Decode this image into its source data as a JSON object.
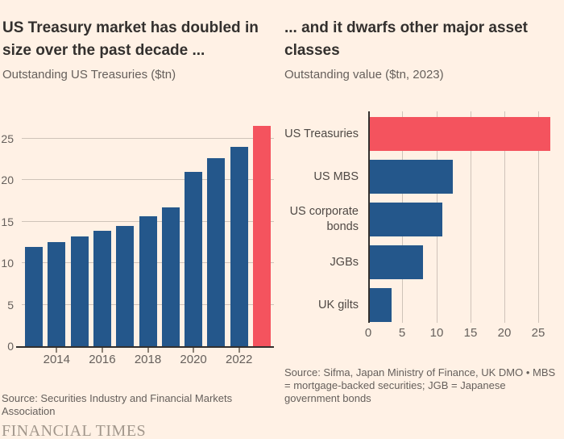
{
  "page": {
    "footer_logo": "FINANCIAL TIMES"
  },
  "colors": {
    "background": "#FFF1E5",
    "bar_blue": "#24578B",
    "bar_red": "#F4535E",
    "gridline": "#CFC3B9",
    "axis": "#33302E",
    "tick": "#8C8175",
    "text_dark": "#33302E",
    "text_muted": "#66605C"
  },
  "left_panel": {
    "title": "US Treasury market has doubled in size over the past decade ...",
    "subtitle": "Outstanding US Treasuries ($tn)",
    "source": "Source: Securities Industry and Financial Markets Association"
  },
  "right_panel": {
    "title": "... and it dwarfs other major asset classes",
    "subtitle": "Outstanding value ($tn, 2023)",
    "source": "Source: Sifma, Japan Ministry of Finance, UK DMO • MBS = mortgage-backed securities; JGB = Japanese government bonds"
  },
  "chart_data": [
    {
      "type": "bar",
      "orientation": "vertical",
      "title": "US Treasury market has doubled in size over the past decade ...",
      "ylabel": "Outstanding US Treasuries ($tn)",
      "categories": [
        "2013",
        "2014",
        "2015",
        "2016",
        "2017",
        "2018",
        "2019",
        "2020",
        "2021",
        "2022",
        "2023"
      ],
      "values": [
        11.9,
        12.5,
        13.2,
        13.9,
        14.5,
        15.6,
        16.7,
        21.0,
        22.6,
        24.0,
        26.5
      ],
      "x_tick_labels": [
        "2014",
        "2016",
        "2018",
        "2020",
        "2022"
      ],
      "y_ticks": [
        0,
        5,
        10,
        15,
        20,
        25
      ],
      "ylim": [
        0,
        28
      ],
      "grid": "horizontal",
      "legend": "none",
      "highlight_index": 10
    },
    {
      "type": "bar",
      "orientation": "horizontal",
      "title": "... and it dwarfs other major asset classes",
      "xlabel": "Outstanding value ($tn, 2023)",
      "categories": [
        "US Treasuries",
        "US MBS",
        "US corporate bonds",
        "JGBs",
        "UK gilts"
      ],
      "values": [
        26.5,
        12.2,
        10.6,
        7.8,
        3.2
      ],
      "x_ticks": [
        0,
        5,
        10,
        15,
        20,
        25
      ],
      "xlim": [
        0,
        27.5
      ],
      "grid": "vertical",
      "legend": "none",
      "highlight_index": 0
    }
  ]
}
